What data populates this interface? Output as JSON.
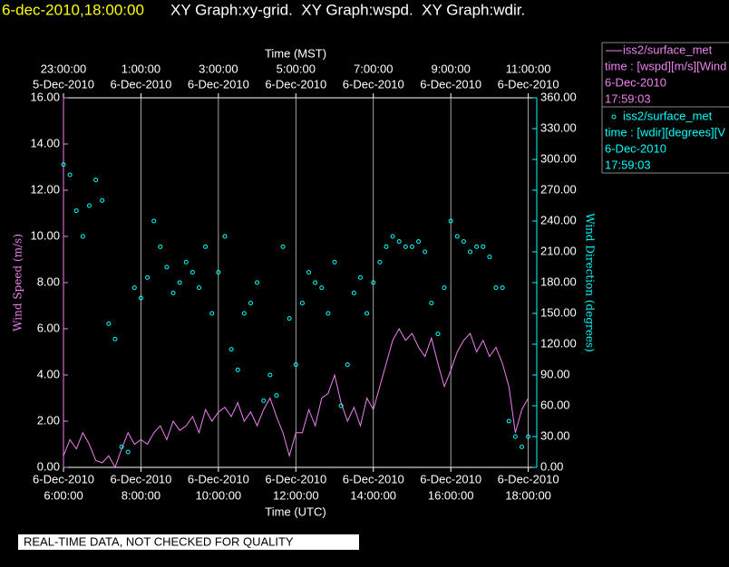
{
  "chart_data": {
    "type": "line-scatter",
    "title_date": "6-dec-2010,18:00:00",
    "title": "XY Graph:xy-grid.  XY Graph:wspd.  XY Graph:wdir.",
    "x_label": "Time (UTC)",
    "x2_label": "Time (MST)",
    "y_label": "Wind Speed (m/s)",
    "y2_label": "Wind Direction (degrees)",
    "footer": "REAL-TIME DATA, NOT CHECKED FOR QUALITY",
    "grid": true,
    "xlim": [
      6,
      18.22
    ],
    "xticks": [
      {
        "value": 6,
        "label": [
          "6-Dec-2010",
          "6:00:00"
        ]
      },
      {
        "value": 8,
        "label": [
          "6-Dec-2010",
          "8:00:00"
        ]
      },
      {
        "value": 10,
        "label": [
          "6-Dec-2010",
          "10:00:00"
        ]
      },
      {
        "value": 12,
        "label": [
          "6-Dec-2010",
          "12:00:00"
        ]
      },
      {
        "value": 14,
        "label": [
          "6-Dec-2010",
          "14:00:00"
        ]
      },
      {
        "value": 16,
        "label": [
          "6-Dec-2010",
          "16:00:00"
        ]
      },
      {
        "value": 18,
        "label": [
          "6-Dec-2010",
          "18:00:00"
        ]
      }
    ],
    "x2ticks": [
      {
        "value": 6,
        "label": [
          "23:00:00",
          "5-Dec-2010"
        ]
      },
      {
        "value": 8,
        "label": [
          "1:00:00",
          "6-Dec-2010"
        ]
      },
      {
        "value": 10,
        "label": [
          "3:00:00",
          "6-Dec-2010"
        ]
      },
      {
        "value": 12,
        "label": [
          "5:00:00",
          "6-Dec-2010"
        ]
      },
      {
        "value": 14,
        "label": [
          "7:00:00",
          "6-Dec-2010"
        ]
      },
      {
        "value": 16,
        "label": [
          "9:00:00",
          "6-Dec-2010"
        ]
      },
      {
        "value": 18,
        "label": [
          "11:00:00",
          "6-Dec-2010"
        ]
      }
    ],
    "ylim": [
      0,
      16
    ],
    "yticks": [
      {
        "value": 0,
        "label": "0.00"
      },
      {
        "value": 2,
        "label": "2.00"
      },
      {
        "value": 4,
        "label": "4.00"
      },
      {
        "value": 6,
        "label": "6.00"
      },
      {
        "value": 8,
        "label": "8.00"
      },
      {
        "value": 10,
        "label": "10.00"
      },
      {
        "value": 12,
        "label": "12.00"
      },
      {
        "value": 14,
        "label": "14.00"
      },
      {
        "value": 16,
        "label": "16.00"
      }
    ],
    "y2lim": [
      0,
      360
    ],
    "y2ticks": [
      {
        "value": 0,
        "label": "0.00"
      },
      {
        "value": 30,
        "label": "30.00"
      },
      {
        "value": 60,
        "label": "60.00"
      },
      {
        "value": 90,
        "label": "90.00"
      },
      {
        "value": 120,
        "label": "120.00"
      },
      {
        "value": 150,
        "label": "150.00"
      },
      {
        "value": 180,
        "label": "180.00"
      },
      {
        "value": 210,
        "label": "210.00"
      },
      {
        "value": 240,
        "label": "240.00"
      },
      {
        "value": 270,
        "label": "270.00"
      },
      {
        "value": 300,
        "label": "300.00"
      },
      {
        "value": 330,
        "label": "330.00"
      },
      {
        "value": 360,
        "label": "360.00"
      }
    ],
    "x": [
      6,
      6.1667,
      6.3333,
      6.5,
      6.6667,
      6.8333,
      7,
      7.1667,
      7.3333,
      7.5,
      7.6667,
      7.8333,
      8,
      8.1667,
      8.3333,
      8.5,
      8.6667,
      8.8333,
      9,
      9.1667,
      9.3333,
      9.5,
      9.6667,
      9.8333,
      10,
      10.1667,
      10.3333,
      10.5,
      10.6667,
      10.8333,
      11,
      11.1667,
      11.3333,
      11.5,
      11.6667,
      11.8333,
      12,
      12.1667,
      12.3333,
      12.5,
      12.6667,
      12.8333,
      13,
      13.1667,
      13.3333,
      13.5,
      13.6667,
      13.8333,
      14,
      14.1667,
      14.3333,
      14.5,
      14.6667,
      14.8333,
      15,
      15.1667,
      15.3333,
      15.5,
      15.6667,
      15.8333,
      16,
      16.1667,
      16.3333,
      16.5,
      16.6667,
      16.8333,
      17,
      17.1667,
      17.3333,
      17.5,
      17.6667,
      17.8333,
      18
    ],
    "series": [
      {
        "name": "iss2/surface_met",
        "kind": "line",
        "color": "#ee82ee",
        "legend_lines": [
          "time : [wspd][m/s][Wind",
          "6-Dec-2010",
          "17:59:03"
        ],
        "values": [
          0.5,
          1.2,
          0.8,
          1.5,
          1.0,
          0.3,
          0.2,
          0.5,
          0.0,
          0.8,
          1.5,
          1.0,
          1.2,
          1.0,
          1.5,
          1.8,
          1.2,
          2.0,
          1.6,
          1.8,
          2.2,
          1.5,
          2.5,
          2.0,
          2.4,
          2.6,
          2.2,
          2.8,
          2.0,
          2.4,
          1.8,
          2.5,
          3.0,
          2.2,
          1.5,
          0.5,
          1.5,
          1.5,
          2.5,
          1.8,
          3.0,
          3.2,
          4.0,
          2.8,
          2.0,
          2.6,
          1.8,
          3.0,
          2.5,
          3.5,
          4.5,
          5.5,
          6.0,
          5.5,
          5.8,
          5.2,
          4.8,
          5.6,
          4.5,
          3.5,
          4.2,
          5.0,
          5.5,
          5.8,
          5.0,
          5.5,
          4.8,
          5.2,
          4.5,
          3.5,
          1.5,
          2.5,
          3.0
        ]
      },
      {
        "name": "iss2/surface_met",
        "kind": "scatter",
        "axis": "y2",
        "color": "#00ffff",
        "legend_lines": [
          "time : [wdir][degrees][V",
          "6-Dec-2010",
          "17:59:03"
        ],
        "values": [
          295,
          285,
          250,
          225,
          255,
          280,
          260,
          140,
          125,
          20,
          15,
          175,
          165,
          185,
          240,
          215,
          195,
          170,
          180,
          200,
          190,
          175,
          215,
          150,
          190,
          225,
          115,
          95,
          150,
          160,
          180,
          65,
          90,
          70,
          215,
          145,
          100,
          160,
          190,
          180,
          175,
          150,
          200,
          60,
          100,
          170,
          185,
          150,
          180,
          200,
          215,
          225,
          220,
          215,
          215,
          220,
          210,
          160,
          130,
          175,
          240,
          225,
          220,
          210,
          215,
          215,
          205,
          175,
          175,
          45,
          30,
          20,
          30
        ]
      }
    ]
  }
}
